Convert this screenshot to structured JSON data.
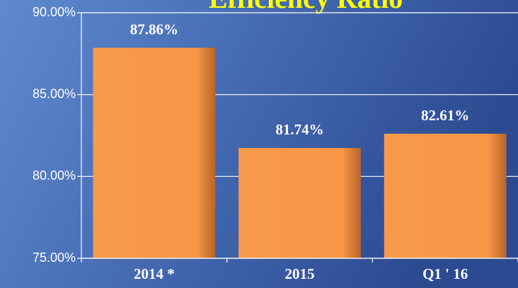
{
  "chart_data": {
    "type": "bar",
    "title": "Efficiency Ratio",
    "categories": [
      "2014 *",
      "2015",
      "Q1 ' 16"
    ],
    "values": [
      87.86,
      81.74,
      82.61
    ],
    "value_labels": [
      "87.86%",
      "81.74%",
      "82.61%"
    ],
    "color": "#f79646",
    "ylim": [
      75,
      90
    ],
    "yticks": [
      {
        "value": 75,
        "label": "75.00%"
      },
      {
        "value": 80,
        "label": "80.00%"
      },
      {
        "value": 85,
        "label": "85.00%"
      },
      {
        "value": 90,
        "label": "90.00%"
      }
    ],
    "grid": true
  }
}
